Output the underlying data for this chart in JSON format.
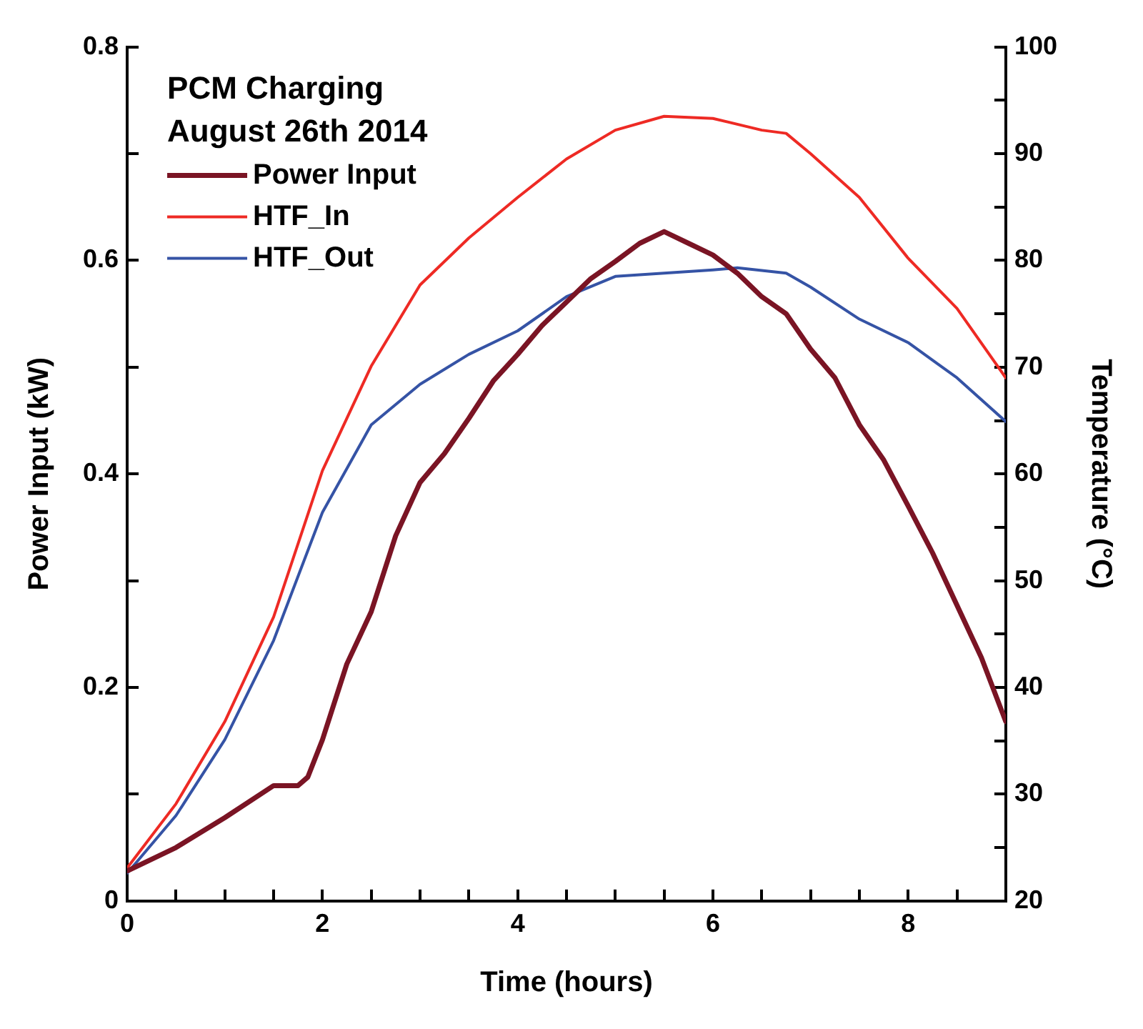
{
  "chart_data": {
    "type": "line",
    "legend_title": "PCM Charging\nAugust 26th 2014",
    "xlabel": "Time (hours)",
    "ylabel": "Power Input (kW)",
    "y2label": "Temperature (°C)",
    "xlim": [
      0,
      9
    ],
    "xticks": [
      0,
      {
        "value": 0.5,
        "label": null
      },
      {
        "value": 1,
        "label": null
      },
      {
        "value": 1.5,
        "label": null
      },
      2,
      {
        "value": 2.5,
        "label": null
      },
      {
        "value": 3,
        "label": null
      },
      {
        "value": 3.5,
        "label": null
      },
      4,
      {
        "value": 4.5,
        "label": null
      },
      {
        "value": 5,
        "label": null
      },
      {
        "value": 5.5,
        "label": null
      },
      6,
      {
        "value": 6.5,
        "label": null
      },
      {
        "value": 7,
        "label": null
      },
      {
        "value": 7.5,
        "label": null
      },
      8,
      {
        "value": 8.5,
        "label": null
      }
    ],
    "ylim": [
      0,
      0.8
    ],
    "yticks": [
      0,
      {
        "value": 0.1,
        "label": null
      },
      0.2,
      {
        "value": 0.3,
        "label": null
      },
      0.4,
      {
        "value": 0.5,
        "label": null
      },
      0.6,
      {
        "value": 0.7,
        "label": null
      },
      0.8
    ],
    "y2lim": [
      20,
      100
    ],
    "y2ticks": [
      20,
      {
        "value": 25,
        "label": null
      },
      30,
      {
        "value": 35,
        "label": null
      },
      40,
      {
        "value": 45,
        "label": null
      },
      50,
      {
        "value": 55,
        "label": null
      },
      60,
      {
        "value": 65,
        "label": null
      },
      70,
      {
        "value": 75,
        "label": null
      },
      80,
      {
        "value": 85,
        "label": null
      },
      90,
      {
        "value": 95,
        "label": null
      },
      100
    ],
    "grid": false,
    "legend": "top left",
    "marker": "none",
    "line_style": "solid",
    "series": [
      {
        "name": "Power Input",
        "color": "#7a1424",
        "x": [
          0,
          0.5,
          1,
          1.5,
          1.75,
          1.85,
          2,
          2.25,
          2.5,
          2.75,
          3,
          3.25,
          3.5,
          3.75,
          4,
          4.25,
          4.5,
          4.75,
          5,
          5.25,
          5.5,
          5.75,
          6,
          6.25,
          6.5,
          6.75,
          7,
          7.25,
          7.5,
          7.75,
          8,
          8.25,
          8.5,
          8.75,
          9
        ],
        "values": [
          0.028,
          0.05,
          0.078,
          0.108,
          0.108,
          0.116,
          0.151,
          0.222,
          0.271,
          0.342,
          0.392,
          0.419,
          0.452,
          0.487,
          0.512,
          0.539,
          0.561,
          0.583,
          0.599,
          0.616,
          0.627,
          0.616,
          0.605,
          0.588,
          0.566,
          0.55,
          0.517,
          0.49,
          0.446,
          0.413,
          0.37,
          0.326,
          0.277,
          0.228,
          0.168
        ]
      },
      {
        "name": "HTF_In",
        "color": "#ee2a24",
        "axis": "y2",
        "x": [
          0,
          0.5,
          1,
          1.5,
          2,
          2.5,
          3,
          3.5,
          4,
          4.5,
          5,
          5.5,
          6,
          6.5,
          6.75,
          7,
          7.5,
          8,
          8.5,
          9
        ],
        "values": [
          23.1,
          29.1,
          36.8,
          46.6,
          60.3,
          70.1,
          77.7,
          82.1,
          85.9,
          89.5,
          92.2,
          93.5,
          93.3,
          92.2,
          91.9,
          90.0,
          85.9,
          80.2,
          75.5,
          69.0
        ]
      },
      {
        "name": "HTF_Out",
        "color": "#3553a5",
        "axis": "y2",
        "x": [
          0,
          0.5,
          1,
          1.5,
          2,
          2.5,
          3,
          3.5,
          4,
          4.5,
          5,
          5.5,
          6,
          6.25,
          6.75,
          7,
          7.5,
          8,
          8.5,
          9
        ],
        "values": [
          22.6,
          28.0,
          35.1,
          44.4,
          56.4,
          64.6,
          68.4,
          71.2,
          73.4,
          76.6,
          78.5,
          78.8,
          79.1,
          79.3,
          78.8,
          77.5,
          74.5,
          72.3,
          69.0,
          64.9
        ]
      }
    ]
  }
}
